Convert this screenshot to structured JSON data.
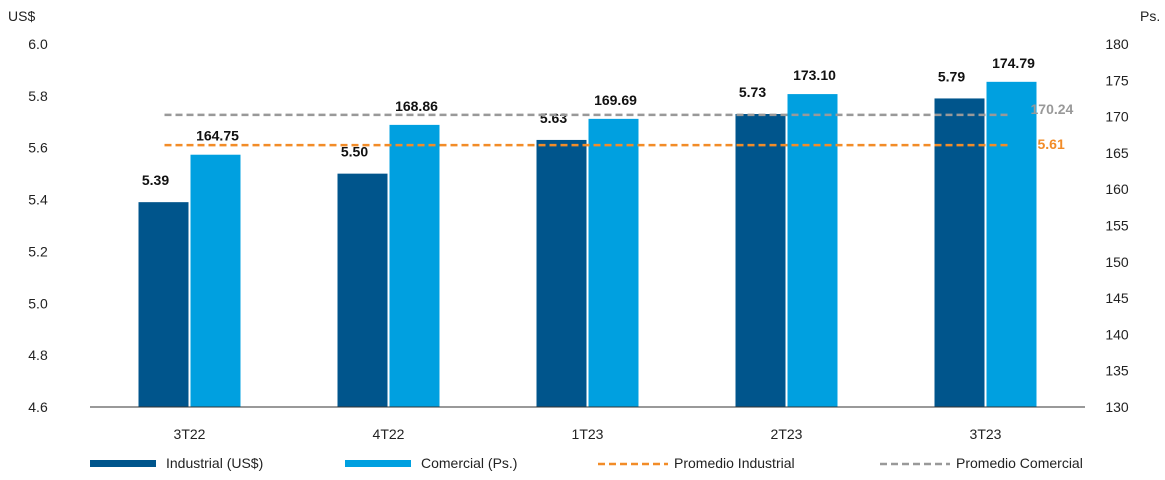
{
  "chart_data": {
    "type": "bar",
    "categories": [
      "3T22",
      "4T22",
      "1T23",
      "2T23",
      "3T23"
    ],
    "left_axis": {
      "unit": "US$",
      "ylim": [
        4.6,
        6.0
      ],
      "ticks": [
        "4.6",
        "4.8",
        "5.0",
        "5.2",
        "5.4",
        "5.6",
        "5.8",
        "6.0"
      ]
    },
    "right_axis": {
      "unit": "Ps.",
      "ylim": [
        130,
        180
      ],
      "ticks": [
        "130",
        "135",
        "140",
        "145",
        "150",
        "155",
        "160",
        "165",
        "170",
        "175",
        "180"
      ]
    },
    "series": [
      {
        "name": "Industrial (US$)",
        "axis": "left",
        "color": "#00558C",
        "values": [
          5.39,
          5.5,
          5.63,
          5.73,
          5.79
        ],
        "labels": [
          "5.39",
          "5.50",
          "5.63",
          "5.73",
          "5.79"
        ]
      },
      {
        "name": "Comercial (Ps.)",
        "axis": "right",
        "color": "#00A0E0",
        "values": [
          164.75,
          168.86,
          169.69,
          173.1,
          174.79
        ],
        "labels": [
          "164.75",
          "168.86",
          "169.69",
          "173.10",
          "174.79"
        ]
      }
    ],
    "reference_lines": [
      {
        "name": "Promedio Industrial",
        "axis": "left",
        "value": 5.61,
        "label": "5.61",
        "color": "#F28C28",
        "style": "dashed"
      },
      {
        "name": "Promedio Comercial",
        "axis": "right",
        "value": 170.24,
        "label": "170.24",
        "color": "#999999",
        "style": "dashed"
      }
    ],
    "legend_position": "bottom",
    "grid": false
  }
}
